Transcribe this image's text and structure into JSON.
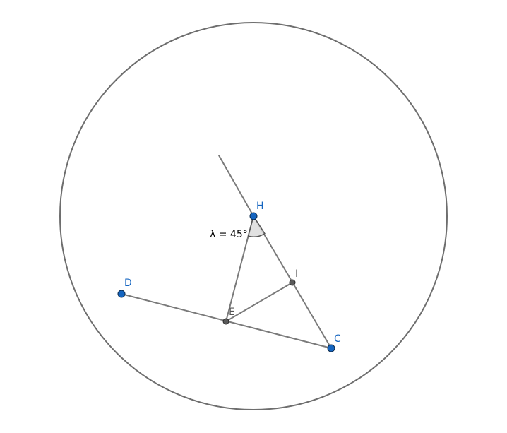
{
  "points": {
    "H": {
      "label": "H",
      "color": "#1565c0"
    },
    "D": {
      "label": "D",
      "color": "#1565c0"
    },
    "C": {
      "label": "C",
      "color": "#1565c0"
    },
    "E": {
      "label": "E",
      "color": "#555555"
    },
    "I": {
      "label": "I",
      "color": "#555555"
    }
  },
  "angle": {
    "label": "λ = 45°",
    "value_deg": 45
  }
}
